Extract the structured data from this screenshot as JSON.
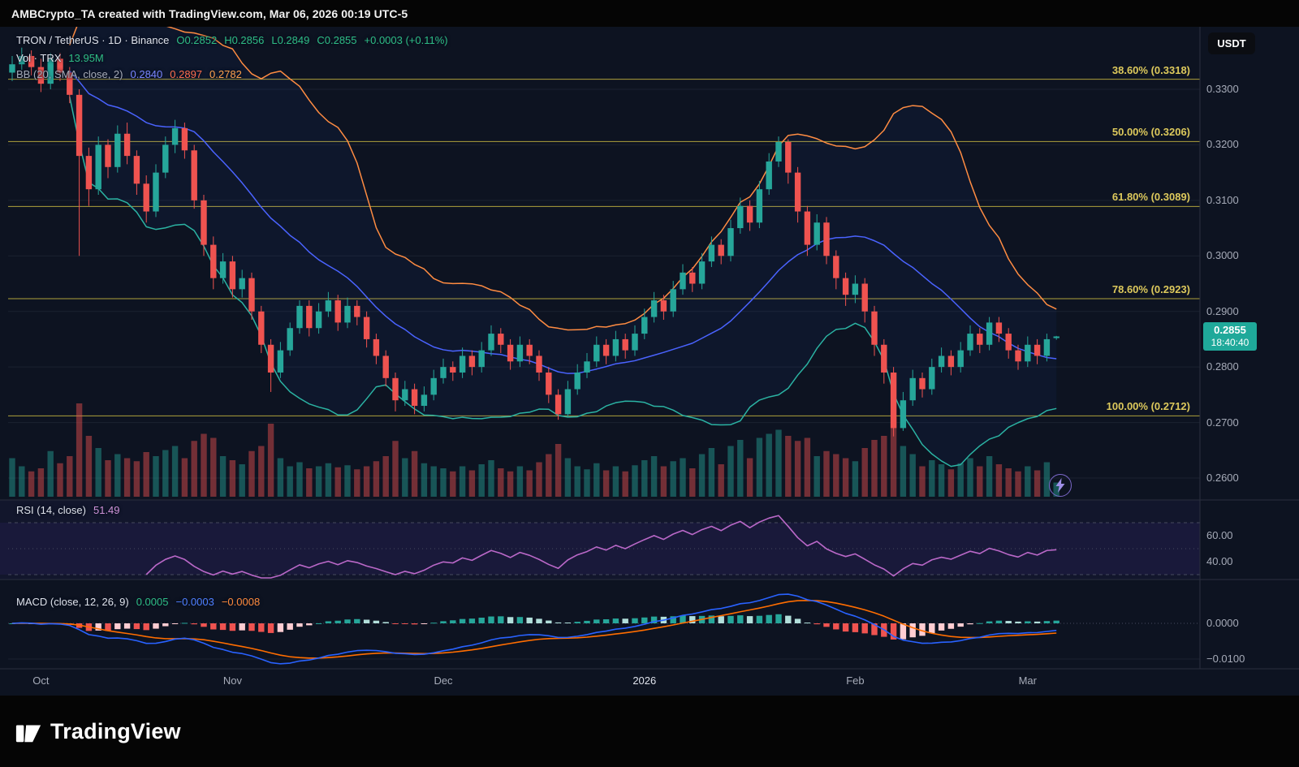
{
  "top_bar": {
    "attribution": "AMBCrypto_TA created with TradingView.com, Mar 06, 2026 00:19 UTC-5"
  },
  "legend": {
    "symbol_line": {
      "title": "TRON / TetherUS · 1D · Binance",
      "open": "O0.2852",
      "high": "H0.2856",
      "low": "L0.2849",
      "close": "C0.2855",
      "change": "+0.0003 (+0.11%)"
    },
    "vol_line": {
      "label": "Vol · TRX",
      "value": "13.95M"
    },
    "bb_line": {
      "label": "BB (20, SMA, close, 2)",
      "basis": "0.2840",
      "upper": "0.2897",
      "lower": "0.2782"
    },
    "rsi_line": {
      "label": "RSI (14, close)",
      "value": "51.49"
    },
    "macd_line": {
      "label": "MACD (close, 12, 26, 9)",
      "hist": "0.0005",
      "macd": "−0.0003",
      "signal": "−0.0008"
    }
  },
  "price_scale": {
    "currency_button": "USDT",
    "current": {
      "price": "0.2855",
      "countdown": "18:40:40"
    }
  },
  "footer": {
    "brand": "TradingView"
  },
  "colors": {
    "up": "#26a69a",
    "down": "#ef5350",
    "bb_upper": "#ff8c42",
    "bb_basis": "#4a63ff",
    "bb_lower": "#2bb3a3",
    "fib": "#b8a93e",
    "rsi": "#ba68c8",
    "macd": "#2962ff",
    "signal": "#ff6d00",
    "badge": "#1fa99a"
  },
  "chart_data": {
    "type": "candlestick",
    "symbol": "TRON / TetherUS",
    "interval": "1D",
    "exchange": "Binance",
    "price_range": [
      0.26,
      0.345
    ],
    "price_ticks": [
      {
        "label": "0.3300",
        "value": 0.33
      },
      {
        "label": "0.3200",
        "value": 0.32
      },
      {
        "label": "0.3100",
        "value": 0.31
      },
      {
        "label": "0.3000",
        "value": 0.3
      },
      {
        "label": "0.2900",
        "value": 0.29
      },
      {
        "label": "0.2800",
        "value": 0.28
      },
      {
        "label": "0.2700",
        "value": 0.27
      },
      {
        "label": "0.2600",
        "value": 0.26
      }
    ],
    "fib_levels": [
      {
        "label": "38.60% (0.3318)",
        "value": 0.3318
      },
      {
        "label": "50.00% (0.3206)",
        "value": 0.3206
      },
      {
        "label": "61.80% (0.3089)",
        "value": 0.3089
      },
      {
        "label": "78.60% (0.2923)",
        "value": 0.2923
      },
      {
        "label": "100.00% (0.2712)",
        "value": 0.2712
      }
    ],
    "time_ticks": [
      {
        "label": "Oct",
        "i": 3
      },
      {
        "label": "Nov",
        "i": 23
      },
      {
        "label": "Dec",
        "i": 45
      },
      {
        "label": "2026",
        "i": 66,
        "year": true
      },
      {
        "label": "Feb",
        "i": 88
      },
      {
        "label": "Mar",
        "i": 106
      }
    ],
    "bollinger": {
      "length": 20,
      "source": "close",
      "mult": 2,
      "basis": 0.284,
      "upper": 0.2897,
      "lower": 0.2782
    },
    "rsi": {
      "length": 14,
      "source": "close",
      "current": 51.49,
      "bands": [
        70,
        30
      ],
      "axis_ticks": [
        {
          "label": "60.00",
          "value": 60
        },
        {
          "label": "40.00",
          "value": 40
        }
      ]
    },
    "macd": {
      "fast": 12,
      "slow": 26,
      "signal_len": 9,
      "hist_current": 0.0005,
      "macd_current": -0.0003,
      "signal_current": -0.0008,
      "axis_ticks": [
        {
          "label": "0.0000",
          "value": 0
        },
        {
          "label": "−0.0100",
          "value": -0.01
        }
      ]
    },
    "candles": [
      [
        0.333,
        0.336,
        0.3315,
        0.3345
      ],
      [
        0.3345,
        0.3375,
        0.3335,
        0.336
      ],
      [
        0.336,
        0.337,
        0.3325,
        0.334
      ],
      [
        0.334,
        0.3355,
        0.3295,
        0.331
      ],
      [
        0.331,
        0.3365,
        0.33,
        0.3355
      ],
      [
        0.3355,
        0.3365,
        0.3315,
        0.333
      ],
      [
        0.333,
        0.334,
        0.3275,
        0.329
      ],
      [
        0.329,
        0.33,
        0.3,
        0.318
      ],
      [
        0.318,
        0.3195,
        0.309,
        0.312
      ],
      [
        0.312,
        0.3215,
        0.311,
        0.32
      ],
      [
        0.32,
        0.321,
        0.314,
        0.316
      ],
      [
        0.316,
        0.3235,
        0.315,
        0.322
      ],
      [
        0.322,
        0.324,
        0.3165,
        0.318
      ],
      [
        0.318,
        0.319,
        0.311,
        0.313
      ],
      [
        0.313,
        0.3145,
        0.306,
        0.308
      ],
      [
        0.308,
        0.3165,
        0.307,
        0.315
      ],
      [
        0.315,
        0.3215,
        0.314,
        0.32
      ],
      [
        0.32,
        0.3245,
        0.3185,
        0.323
      ],
      [
        0.323,
        0.324,
        0.3175,
        0.319
      ],
      [
        0.319,
        0.32,
        0.3085,
        0.31
      ],
      [
        0.31,
        0.311,
        0.3,
        0.302
      ],
      [
        0.302,
        0.3035,
        0.294,
        0.296
      ],
      [
        0.296,
        0.3005,
        0.295,
        0.299
      ],
      [
        0.299,
        0.3,
        0.2925,
        0.294
      ],
      [
        0.294,
        0.2975,
        0.2925,
        0.296
      ],
      [
        0.296,
        0.297,
        0.2885,
        0.29
      ],
      [
        0.29,
        0.291,
        0.2825,
        0.284
      ],
      [
        0.284,
        0.285,
        0.2755,
        0.279
      ],
      [
        0.279,
        0.2845,
        0.278,
        0.283
      ],
      [
        0.283,
        0.288,
        0.282,
        0.287
      ],
      [
        0.287,
        0.292,
        0.286,
        0.291
      ],
      [
        0.291,
        0.292,
        0.2855,
        0.287
      ],
      [
        0.287,
        0.2915,
        0.286,
        0.29
      ],
      [
        0.29,
        0.2935,
        0.289,
        0.292
      ],
      [
        0.292,
        0.293,
        0.2865,
        0.288
      ],
      [
        0.288,
        0.2925,
        0.287,
        0.291
      ],
      [
        0.291,
        0.292,
        0.2875,
        0.289
      ],
      [
        0.289,
        0.29,
        0.2835,
        0.285
      ],
      [
        0.285,
        0.286,
        0.2805,
        0.282
      ],
      [
        0.282,
        0.283,
        0.2765,
        0.278
      ],
      [
        0.278,
        0.279,
        0.272,
        0.274
      ],
      [
        0.274,
        0.2775,
        0.273,
        0.276
      ],
      [
        0.276,
        0.277,
        0.2715,
        0.273
      ],
      [
        0.273,
        0.2765,
        0.272,
        0.275
      ],
      [
        0.275,
        0.2795,
        0.274,
        0.278
      ],
      [
        0.278,
        0.2815,
        0.277,
        0.28
      ],
      [
        0.28,
        0.281,
        0.2775,
        0.279
      ],
      [
        0.279,
        0.2835,
        0.278,
        0.282
      ],
      [
        0.282,
        0.283,
        0.2785,
        0.28
      ],
      [
        0.28,
        0.2845,
        0.279,
        0.283
      ],
      [
        0.283,
        0.2875,
        0.282,
        0.286
      ],
      [
        0.286,
        0.287,
        0.2825,
        0.284
      ],
      [
        0.284,
        0.285,
        0.2795,
        0.281
      ],
      [
        0.281,
        0.2855,
        0.28,
        0.284
      ],
      [
        0.284,
        0.285,
        0.2805,
        0.282
      ],
      [
        0.282,
        0.283,
        0.2775,
        0.279
      ],
      [
        0.279,
        0.28,
        0.2735,
        0.275
      ],
      [
        0.275,
        0.276,
        0.2705,
        0.2715
      ],
      [
        0.2715,
        0.2775,
        0.271,
        0.276
      ],
      [
        0.276,
        0.2805,
        0.275,
        0.279
      ],
      [
        0.279,
        0.2825,
        0.278,
        0.281
      ],
      [
        0.281,
        0.2855,
        0.28,
        0.284
      ],
      [
        0.284,
        0.285,
        0.2805,
        0.282
      ],
      [
        0.282,
        0.2865,
        0.281,
        0.285
      ],
      [
        0.285,
        0.286,
        0.2815,
        0.283
      ],
      [
        0.283,
        0.2875,
        0.282,
        0.286
      ],
      [
        0.286,
        0.2905,
        0.285,
        0.289
      ],
      [
        0.289,
        0.2935,
        0.288,
        0.292
      ],
      [
        0.292,
        0.293,
        0.2885,
        0.29
      ],
      [
        0.29,
        0.2955,
        0.289,
        0.294
      ],
      [
        0.294,
        0.2985,
        0.293,
        0.297
      ],
      [
        0.297,
        0.298,
        0.2935,
        0.295
      ],
      [
        0.295,
        0.3005,
        0.294,
        0.299
      ],
      [
        0.299,
        0.3035,
        0.298,
        0.302
      ],
      [
        0.302,
        0.303,
        0.2985,
        0.3
      ],
      [
        0.3,
        0.3065,
        0.299,
        0.305
      ],
      [
        0.305,
        0.3105,
        0.304,
        0.309
      ],
      [
        0.309,
        0.31,
        0.3045,
        0.306
      ],
      [
        0.306,
        0.3135,
        0.305,
        0.312
      ],
      [
        0.312,
        0.3185,
        0.311,
        0.317
      ],
      [
        0.317,
        0.3215,
        0.316,
        0.3205
      ],
      [
        0.3205,
        0.321,
        0.313,
        0.315
      ],
      [
        0.315,
        0.316,
        0.306,
        0.308
      ],
      [
        0.308,
        0.309,
        0.3,
        0.302
      ],
      [
        0.302,
        0.3075,
        0.301,
        0.306
      ],
      [
        0.306,
        0.307,
        0.2985,
        0.3
      ],
      [
        0.3,
        0.301,
        0.294,
        0.296
      ],
      [
        0.296,
        0.297,
        0.291,
        0.293
      ],
      [
        0.293,
        0.2965,
        0.2915,
        0.295
      ],
      [
        0.295,
        0.296,
        0.288,
        0.29
      ],
      [
        0.29,
        0.291,
        0.282,
        0.284
      ],
      [
        0.284,
        0.285,
        0.277,
        0.279
      ],
      [
        0.279,
        0.28,
        0.2675,
        0.269
      ],
      [
        0.269,
        0.2755,
        0.2685,
        0.274
      ],
      [
        0.274,
        0.2795,
        0.273,
        0.278
      ],
      [
        0.278,
        0.279,
        0.2745,
        0.276
      ],
      [
        0.276,
        0.2815,
        0.275,
        0.28
      ],
      [
        0.28,
        0.2835,
        0.279,
        0.282
      ],
      [
        0.282,
        0.283,
        0.2785,
        0.28
      ],
      [
        0.28,
        0.2845,
        0.279,
        0.283
      ],
      [
        0.283,
        0.2875,
        0.282,
        0.286
      ],
      [
        0.286,
        0.287,
        0.2825,
        0.284
      ],
      [
        0.284,
        0.289,
        0.283,
        0.288
      ],
      [
        0.288,
        0.289,
        0.2845,
        0.286
      ],
      [
        0.286,
        0.287,
        0.2815,
        0.283
      ],
      [
        0.283,
        0.284,
        0.2795,
        0.281
      ],
      [
        0.281,
        0.2855,
        0.28,
        0.284
      ],
      [
        0.284,
        0.285,
        0.2805,
        0.282
      ],
      [
        0.282,
        0.286,
        0.281,
        0.285
      ],
      [
        0.2852,
        0.2856,
        0.2849,
        0.2855
      ]
    ],
    "volumes": [
      38,
      30,
      25,
      28,
      45,
      33,
      40,
      92,
      60,
      48,
      36,
      42,
      38,
      35,
      44,
      40,
      46,
      50,
      38,
      55,
      62,
      58,
      40,
      36,
      32,
      45,
      50,
      72,
      38,
      30,
      34,
      28,
      30,
      33,
      29,
      31,
      27,
      30,
      35,
      40,
      55,
      38,
      45,
      33,
      30,
      28,
      25,
      30,
      26,
      32,
      36,
      28,
      25,
      30,
      26,
      34,
      42,
      52,
      38,
      30,
      27,
      33,
      26,
      30,
      25,
      31,
      36,
      40,
      30,
      35,
      38,
      28,
      42,
      48,
      32,
      50,
      56,
      38,
      58,
      62,
      66,
      60,
      55,
      58,
      40,
      45,
      42,
      38,
      35,
      48,
      56,
      60,
      78,
      50,
      42,
      30,
      36,
      32,
      27,
      33,
      38,
      30,
      40,
      32,
      28,
      25,
      30,
      26,
      34,
      13.95
    ]
  }
}
